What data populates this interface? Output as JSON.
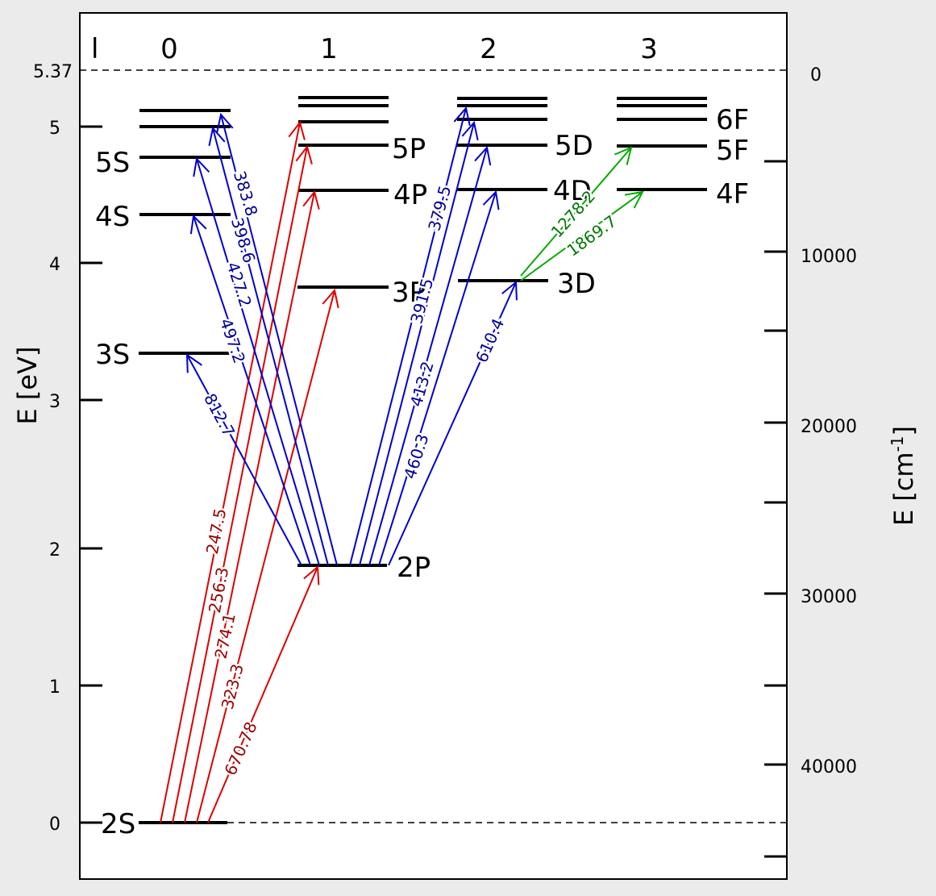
{
  "diagram": {
    "l_header": "l",
    "columns": [
      "0",
      "1",
      "2",
      "3"
    ],
    "left_axis": {
      "title": "E [eV]",
      "ionization_label": "5.37",
      "ticks": [
        "0",
        "1",
        "2",
        "3",
        "4",
        "5"
      ]
    },
    "right_axis": {
      "title_main": "E  [cm",
      "title_sup": "-1",
      "title_end": "]",
      "zero_label": "0",
      "ticks": [
        "10000",
        "20000",
        "30000",
        "40000"
      ]
    },
    "levels": {
      "s": [
        "2S",
        "3S",
        "4S",
        "5S"
      ],
      "p": [
        "2P",
        "3P",
        "4P",
        "5P"
      ],
      "d": [
        "3D",
        "4D",
        "5D"
      ],
      "f": [
        "4F",
        "5F",
        "6F"
      ]
    },
    "transitions": {
      "red": [
        "670.78",
        "323.3",
        "274.1",
        "256.3",
        "247.5"
      ],
      "blue_s": [
        "812.7",
        "497.2",
        "427.2",
        "398.6",
        "383.8"
      ],
      "blue_d": [
        "610.4",
        "460.3",
        "413.2",
        "391.5",
        "379.5"
      ],
      "green": [
        "1869.7",
        "1278.2"
      ]
    },
    "colors": {
      "red": "#dd0000",
      "red_label": "#990000",
      "blue": "#0000cc",
      "blue_label": "#000099",
      "green": "#00aa00",
      "green_label": "#007700"
    }
  }
}
